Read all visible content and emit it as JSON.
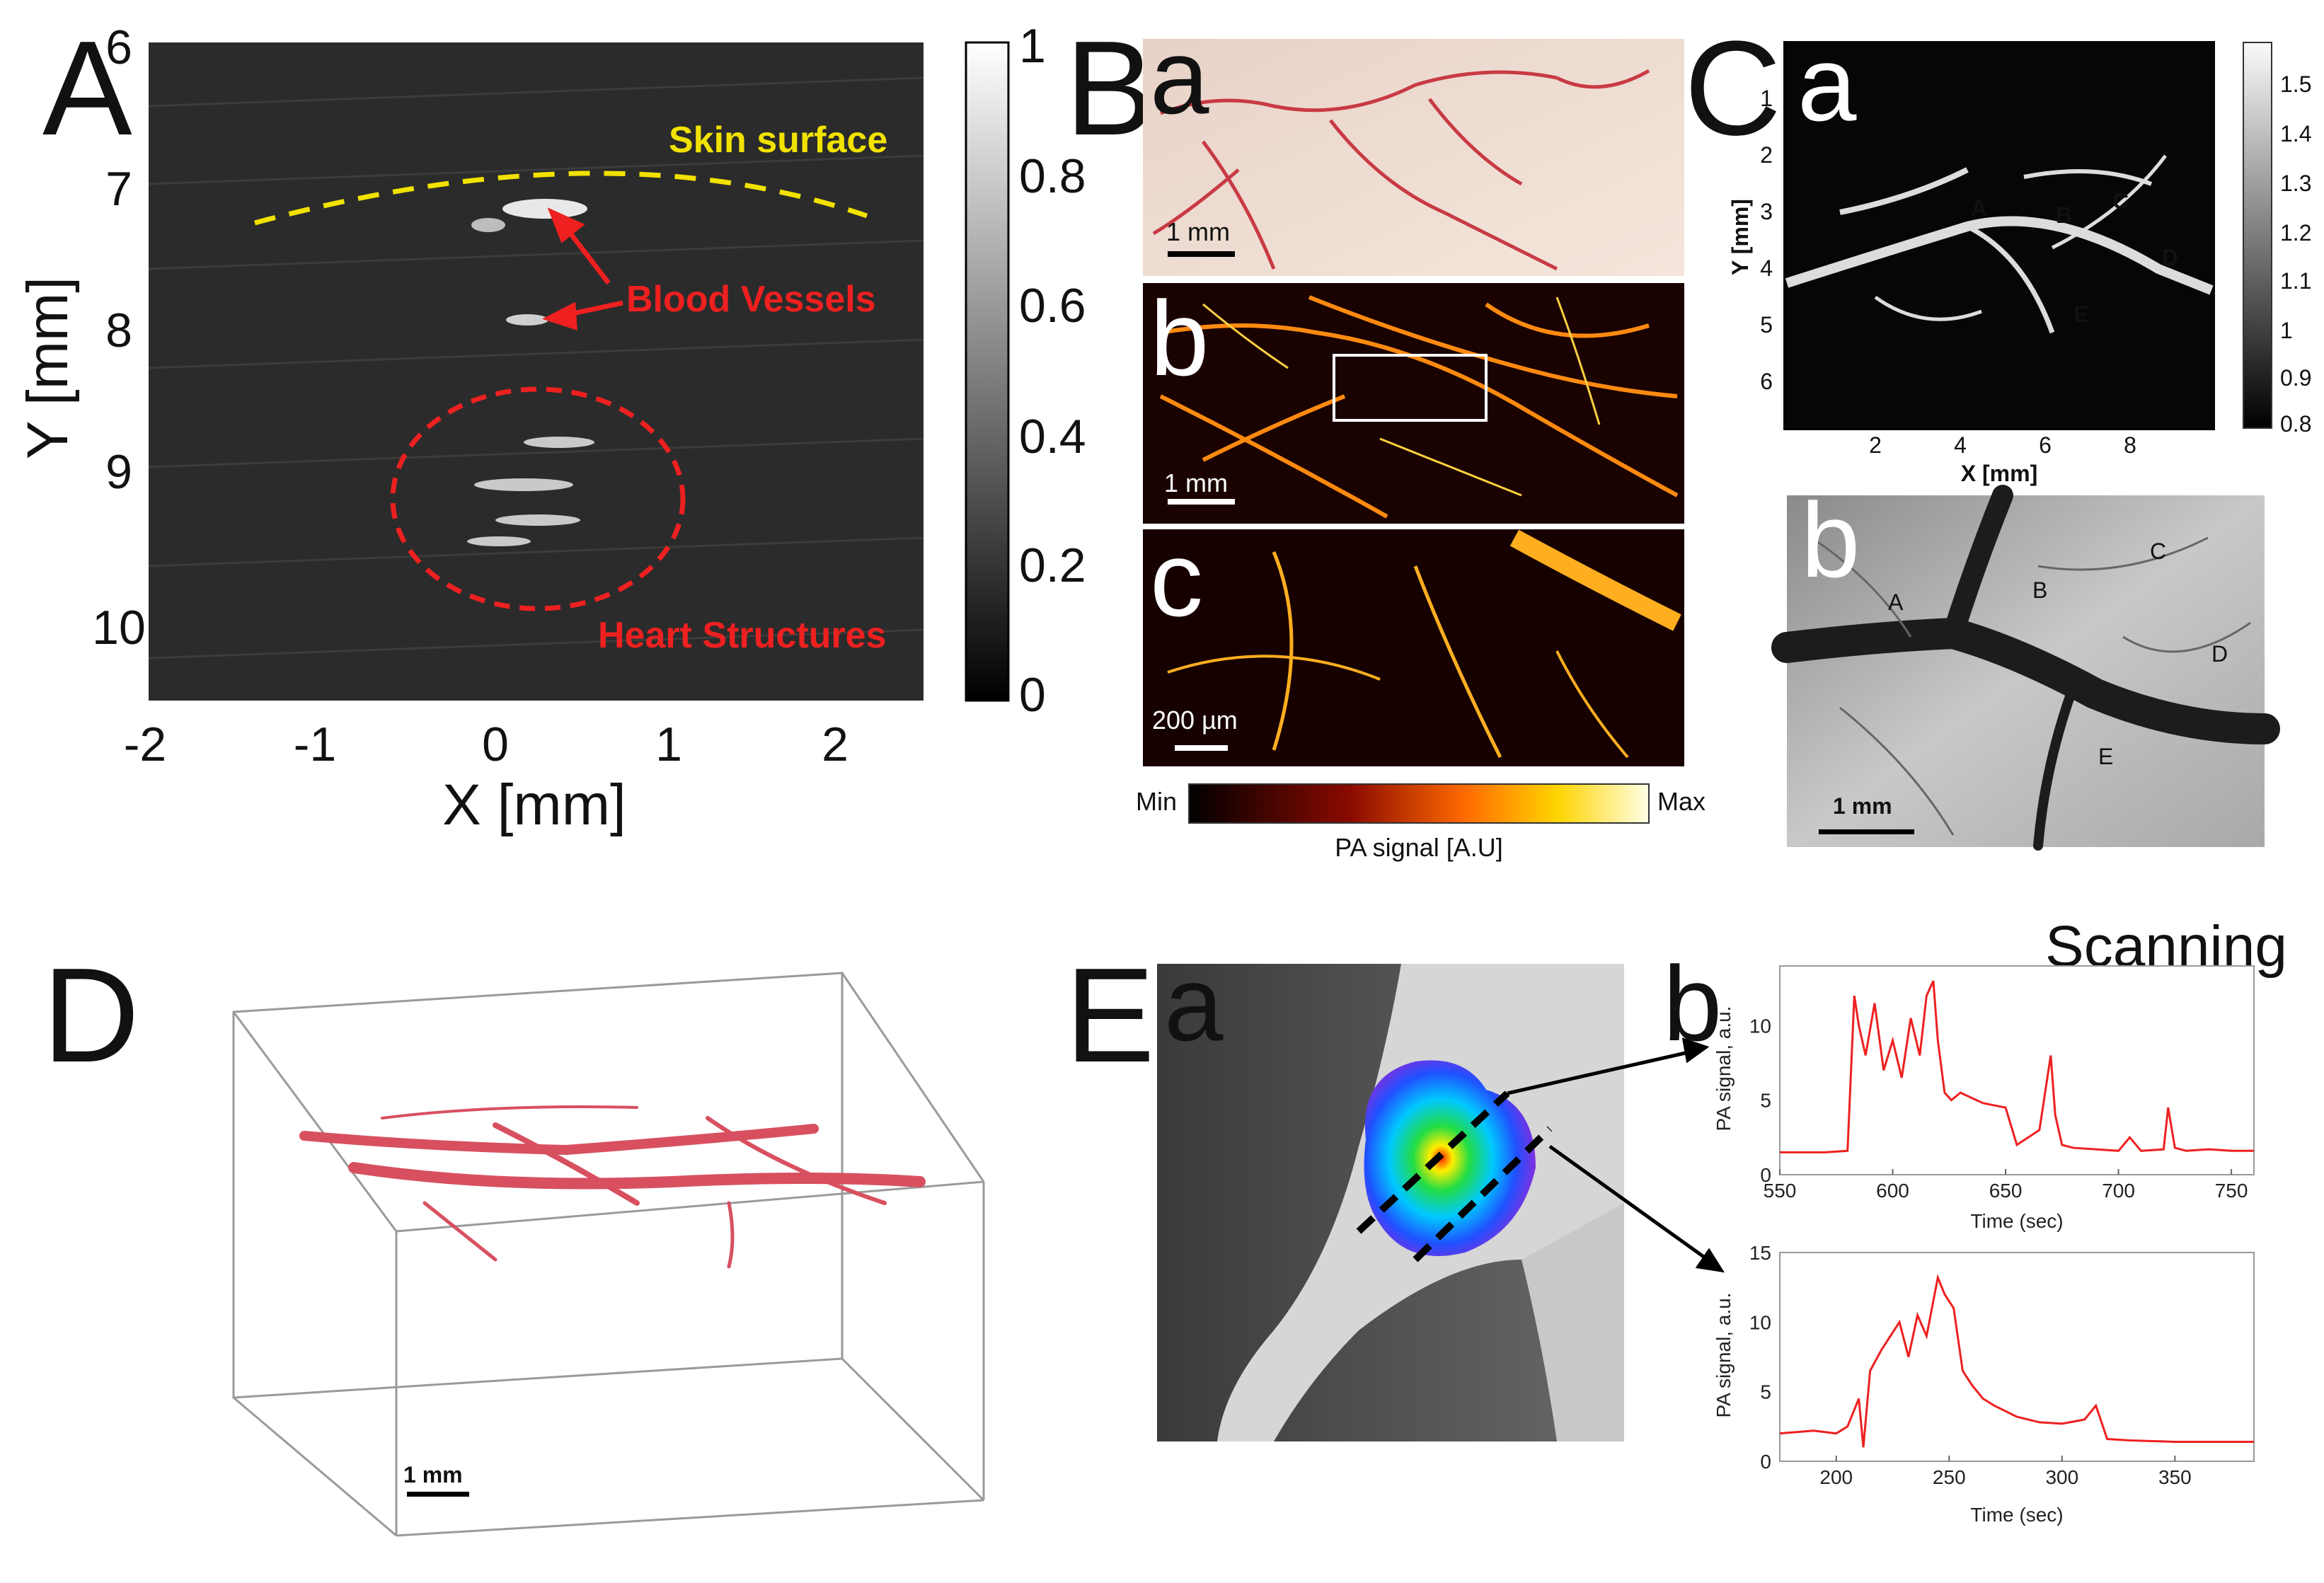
{
  "panels": {
    "A": {
      "label": "A",
      "y_ticks": [
        "6",
        "7",
        "8",
        "9",
        "10"
      ],
      "x_ticks": [
        "-2",
        "-1",
        "0",
        "1",
        "2"
      ],
      "y_title": "Y [mm]",
      "x_title": "X [mm]",
      "colorbar_ticks": [
        "1",
        "0.8",
        "0.6",
        "0.4",
        "0.2",
        "0"
      ],
      "annotations": {
        "skin": "Skin surface",
        "vessels": "Blood Vessels",
        "heart": "Heart Structures"
      }
    },
    "B": {
      "label": "B",
      "sub_a": "a",
      "sub_b": "b",
      "sub_c": "c",
      "scale_a": "1 mm",
      "scale_b": "1 mm",
      "scale_c": "200 µm",
      "colorbar_min": "Min",
      "colorbar_max": "Max",
      "colorbar_title": "PA signal [A.U]"
    },
    "C": {
      "label": "C",
      "sub_a": "a",
      "sub_b": "b",
      "y_title": "Y [mm]",
      "x_title": "X [mm]",
      "y_ticks": [
        "1",
        "2",
        "3",
        "4",
        "5",
        "6"
      ],
      "x_ticks": [
        "2",
        "4",
        "6",
        "8"
      ],
      "colorbar_ticks": [
        "1.5",
        "1.4",
        "1.3",
        "1.2",
        "1.1",
        "1",
        "0.9",
        "0.8"
      ],
      "markers_a": [
        "A",
        "B",
        "C",
        "D",
        "E"
      ],
      "markers_b": [
        "A",
        "B",
        "C",
        "D",
        "E"
      ],
      "scale_b": "1 mm"
    },
    "D": {
      "label": "D",
      "scale": "1 mm"
    },
    "E": {
      "label": "E",
      "sub_a": "a",
      "sub_b": "b",
      "scanning": "Scanning"
    }
  },
  "chart_data": [
    {
      "type": "line",
      "panel": "E-b-top",
      "xlabel": "Time (sec)",
      "ylabel": "PA signal, a.u.",
      "xlim": [
        550,
        760
      ],
      "ylim": [
        0,
        14
      ],
      "x_ticks": [
        550,
        600,
        650,
        700,
        750
      ],
      "y_ticks": [
        0,
        5,
        10
      ],
      "color": "#ee2020",
      "series": [
        {
          "x": [
            550,
            570,
            580,
            583,
            585,
            588,
            592,
            596,
            600,
            604,
            608,
            612,
            615,
            618,
            620,
            623,
            626,
            630,
            640,
            650,
            655,
            660,
            665,
            668,
            670,
            672,
            675,
            680,
            690,
            700,
            705,
            710,
            720,
            722,
            725,
            730,
            740,
            750,
            760
          ],
          "y": [
            1.5,
            1.5,
            1.6,
            12.0,
            10.0,
            8.0,
            11.5,
            7.0,
            9.0,
            6.5,
            10.5,
            8.0,
            12.0,
            13.0,
            9.0,
            5.5,
            5.0,
            5.5,
            4.8,
            4.5,
            2.0,
            2.5,
            3.0,
            6.0,
            8.0,
            4.0,
            2.0,
            1.8,
            1.7,
            1.6,
            2.5,
            1.6,
            1.7,
            4.5,
            1.8,
            1.6,
            1.7,
            1.6,
            1.6
          ]
        }
      ]
    },
    {
      "type": "line",
      "panel": "E-b-bottom",
      "xlabel": "Time (sec)",
      "ylabel": "PA signal, a.u.",
      "xlim": [
        175,
        385
      ],
      "ylim": [
        0,
        15
      ],
      "x_ticks": [
        200,
        250,
        300,
        350
      ],
      "y_ticks": [
        0,
        5,
        10,
        15
      ],
      "color": "#ee2020",
      "series": [
        {
          "x": [
            175,
            190,
            200,
            205,
            210,
            212,
            215,
            220,
            228,
            232,
            236,
            240,
            245,
            248,
            252,
            256,
            260,
            265,
            270,
            280,
            290,
            300,
            310,
            315,
            320,
            330,
            350,
            370,
            385
          ],
          "y": [
            2.0,
            2.2,
            2.0,
            2.5,
            4.5,
            1.0,
            6.5,
            8.0,
            10.0,
            7.5,
            10.5,
            9.0,
            13.2,
            12.0,
            11.0,
            6.5,
            5.5,
            4.5,
            4.0,
            3.2,
            2.8,
            2.7,
            3.0,
            4.0,
            1.6,
            1.5,
            1.4,
            1.4,
            1.4
          ]
        }
      ]
    }
  ]
}
